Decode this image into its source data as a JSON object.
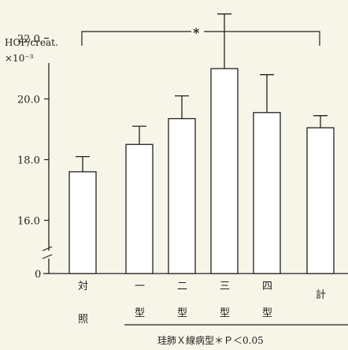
{
  "chart_data": {
    "type": "bar",
    "ylabel": "HOP/creat.",
    "ylabel_scale": "×10⁻³",
    "yticks": [
      "22.0",
      "20.0",
      "18.0",
      "16.0"
    ],
    "axis_zero_label": "0",
    "ylim": [
      15.0,
      23.0
    ],
    "categories": [
      "対照",
      "一型",
      "二型",
      "三型",
      "四型",
      "計"
    ],
    "values": [
      17.6,
      18.5,
      19.35,
      21.0,
      19.55,
      19.05
    ],
    "error_upper": [
      18.1,
      19.1,
      20.1,
      22.8,
      20.8,
      19.45
    ],
    "significance_marker": "*",
    "group_note": "珪肺Ｘ線病型＊Ｐ＜0.05",
    "bar_fill": "#ffffff",
    "line_color": "#222222"
  }
}
